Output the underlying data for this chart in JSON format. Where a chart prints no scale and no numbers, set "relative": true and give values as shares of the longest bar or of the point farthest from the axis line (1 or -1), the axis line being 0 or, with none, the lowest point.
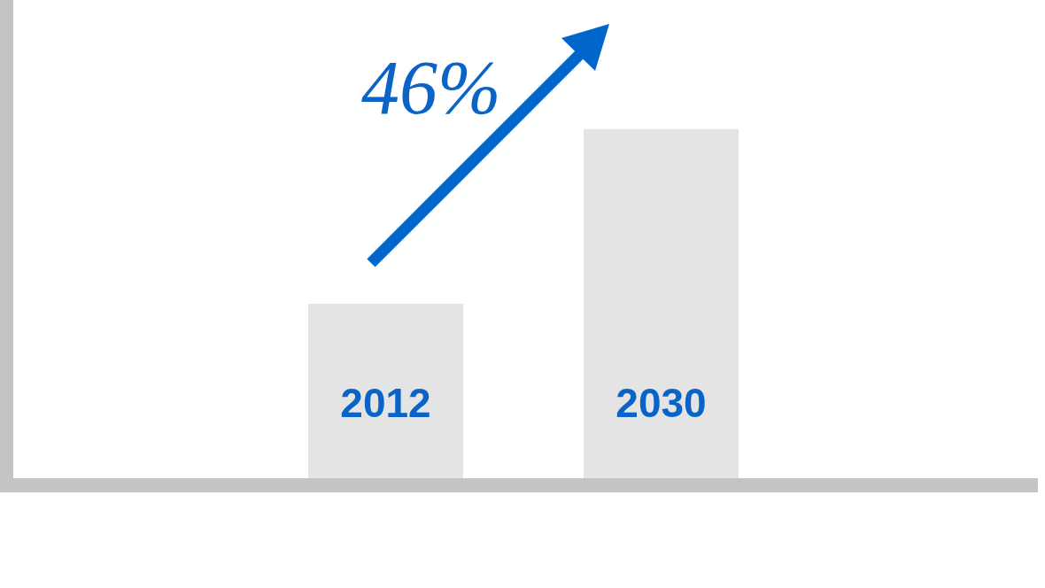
{
  "chart_data": {
    "type": "bar",
    "relative": true,
    "categories": [
      "2012",
      "2030"
    ],
    "values": [
      0.5,
      1
    ],
    "color": "#e4e4e4",
    "legend": false,
    "annotations": [
      "46%"
    ]
  }
}
